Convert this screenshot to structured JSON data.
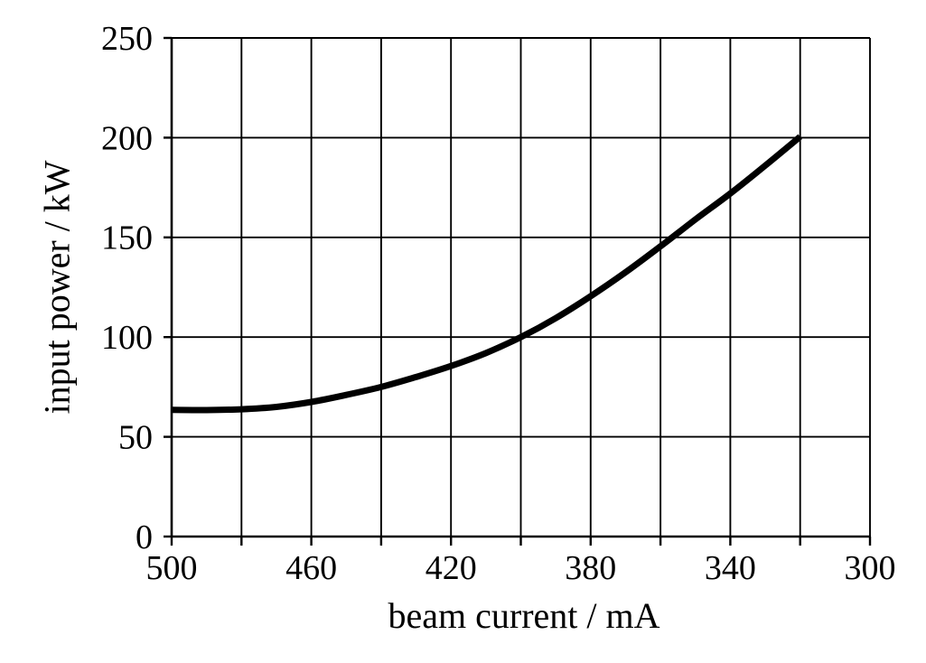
{
  "chart_data": {
    "type": "line",
    "title": "",
    "xlabel": "beam current / mA",
    "ylabel": "input power / kW",
    "x_axis": {
      "left_value": 500,
      "right_value": 300,
      "reversed": true,
      "grid_step": 20,
      "tick_label_values": [
        500,
        460,
        420,
        380,
        340,
        300
      ],
      "tick_labels": [
        "500",
        "460",
        "420",
        "380",
        "340",
        "300"
      ]
    },
    "y_axis": {
      "min": 0,
      "max": 250,
      "grid_step": 50,
      "tick_label_values": [
        0,
        50,
        100,
        150,
        200,
        250
      ],
      "tick_labels": [
        "0",
        "50",
        "100",
        "150",
        "200",
        "250"
      ]
    },
    "grid": "on",
    "legend": "none",
    "series": [
      {
        "name": "input-power-curve",
        "x": [
          500,
          490,
          480,
          470,
          460,
          450,
          440,
          430,
          420,
          410,
          400,
          390,
          380,
          370,
          360,
          350,
          340,
          330,
          320
        ],
        "y": [
          63.5,
          63.4,
          63.8,
          65,
          67.5,
          71,
          75,
          80,
          85.5,
          92,
          100,
          109.5,
          120.5,
          132.5,
          145.5,
          159,
          172,
          186,
          200.5
        ]
      }
    ],
    "colors": {
      "foreground": "#000000",
      "background": "#ffffff"
    }
  }
}
